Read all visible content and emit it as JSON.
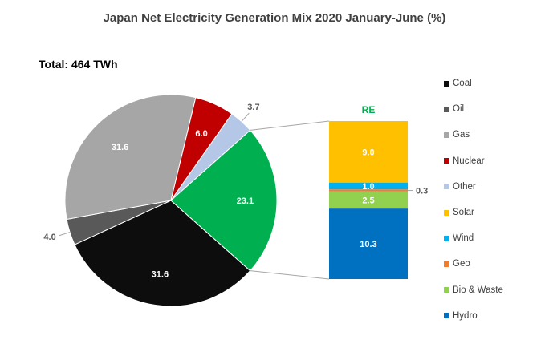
{
  "chart_data": {
    "type": "pie",
    "title": "Japan Net Electricity Generation Mix 2020 January-June (%)",
    "subtitle": "Total: 464 TWh",
    "unit": "%",
    "pie": {
      "slices": [
        {
          "name": "Coal",
          "value": 31.6,
          "label": "31.6",
          "color": "#0d0d0d",
          "label_position": "inside"
        },
        {
          "name": "Oil",
          "value": 4.0,
          "label": "4.0",
          "color": "#595959",
          "label_position": "outside"
        },
        {
          "name": "Gas",
          "value": 31.6,
          "label": "31.6",
          "color": "#a6a6a6",
          "label_position": "inside"
        },
        {
          "name": "Nuclear",
          "value": 6.0,
          "label": "6.0",
          "color": "#c00000",
          "label_position": "inside"
        },
        {
          "name": "Other",
          "value": 3.7,
          "label": "3.7",
          "color": "#b4c7e7",
          "label_position": "outside"
        },
        {
          "name": "RE",
          "value": 23.1,
          "label": "23.1",
          "color": "#00b050",
          "label_position": "inside"
        }
      ]
    },
    "re_bar": {
      "title": "RE",
      "title_color": "#00b050",
      "segments": [
        {
          "name": "Solar",
          "value": 9.0,
          "label": "9.0",
          "color": "#ffc000",
          "label_position": "inside"
        },
        {
          "name": "Wind",
          "value": 1.0,
          "label": "1.0",
          "color": "#00b0f0",
          "label_position": "inside"
        },
        {
          "name": "Geo",
          "value": 0.3,
          "label": "0.3",
          "color": "#ed7d31",
          "label_position": "outside"
        },
        {
          "name": "Bio & Waste",
          "value": 2.5,
          "label": "2.5",
          "color": "#92d050",
          "label_position": "inside"
        },
        {
          "name": "Hydro",
          "value": 10.3,
          "label": "10.3",
          "color": "#0070c0",
          "label_position": "inside"
        }
      ]
    },
    "legend": [
      {
        "name": "Coal",
        "color": "#0d0d0d"
      },
      {
        "name": "Oil",
        "color": "#595959"
      },
      {
        "name": "Gas",
        "color": "#a6a6a6"
      },
      {
        "name": "Nuclear",
        "color": "#c00000"
      },
      {
        "name": "Other",
        "color": "#b4c7e7"
      },
      {
        "name": "Solar",
        "color": "#ffc000"
      },
      {
        "name": "Wind",
        "color": "#00b0f0"
      },
      {
        "name": "Geo",
        "color": "#ed7d31"
      },
      {
        "name": "Bio & Waste",
        "color": "#92d050"
      },
      {
        "name": "Hydro",
        "color": "#0070c0"
      }
    ],
    "legend_position": "right"
  }
}
